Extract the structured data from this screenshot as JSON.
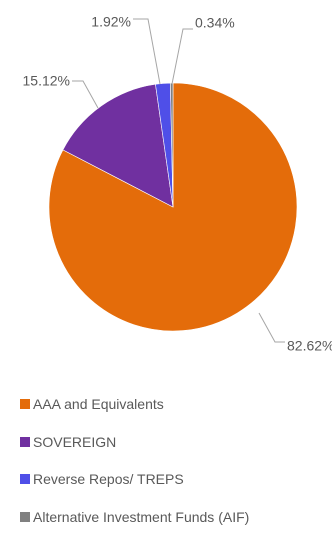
{
  "chart_data": {
    "type": "pie",
    "title": "",
    "start_angle_deg": 0,
    "direction": "clockwise",
    "legend_position": "bottom",
    "slices": [
      {
        "label": "AAA and Equivalents",
        "value": 82.62,
        "display": "82.62%",
        "color": "#E46C0A"
      },
      {
        "label": "SOVEREIGN",
        "value": 15.12,
        "display": "15.12%",
        "color": "#7030A0"
      },
      {
        "label": "Reverse Repos/ TREPS",
        "value": 1.92,
        "display": "1.92%",
        "color": "#4F4FE8"
      },
      {
        "label": "Alternative Investment Funds (AIF)",
        "value": 0.34,
        "display": "0.34%",
        "color": "#808080"
      }
    ]
  }
}
